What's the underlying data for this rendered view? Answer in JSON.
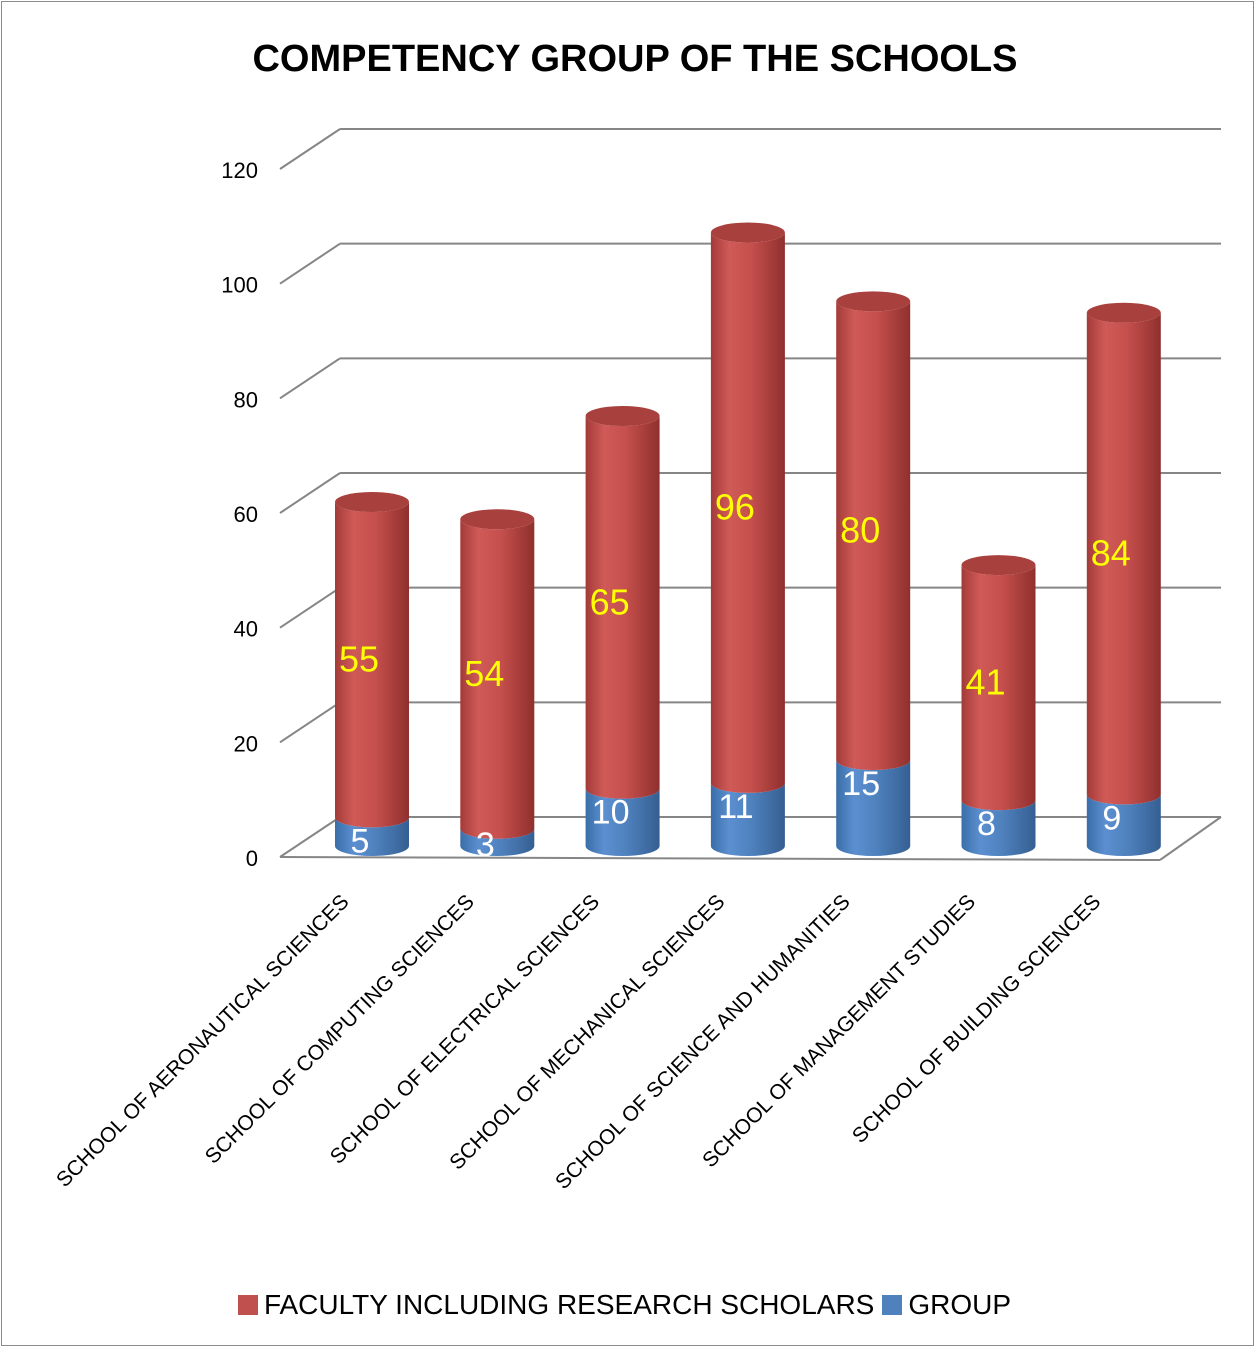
{
  "chart_data": {
    "type": "bar",
    "stacked": true,
    "three_d": true,
    "title": "COMPETENCY GROUP OF THE SCHOOLS",
    "categories": [
      "SCHOOL OF AERONAUTICAL SCIENCES",
      "SCHOOL OF COMPUTING SCIENCES",
      "SCHOOL OF ELECTRICAL SCIENCES",
      "SCHOOL OF MECHANICAL SCIENCES",
      "SCHOOL OF SCIENCE AND HUMANITIES",
      "SCHOOL OF MANAGEMENT STUDIES",
      "SCHOOL OF BUILDING SCIENCES"
    ],
    "series": [
      {
        "name": "GROUP",
        "color": "#4f81bd",
        "values": [
          5,
          3,
          10,
          11,
          15,
          8,
          9
        ]
      },
      {
        "name": "FACULTY INCLUDING RESEARCH SCHOLARS",
        "color": "#c0504d",
        "values": [
          55,
          54,
          65,
          96,
          80,
          41,
          84
        ]
      }
    ],
    "yticks": [
      "0",
      "20",
      "40",
      "60",
      "80",
      "100",
      "120"
    ],
    "ylim": [
      0,
      120
    ],
    "grid": true,
    "legend_position": "bottom",
    "label_colors": {
      "faculty": "#ffff00",
      "group": "#ffffff"
    }
  },
  "legend": {
    "items": [
      {
        "label": "FACULTY INCLUDING RESEARCH SCHOLARS",
        "color": "#c0504d"
      },
      {
        "label": "GROUP",
        "color": "#4f81bd"
      }
    ]
  }
}
